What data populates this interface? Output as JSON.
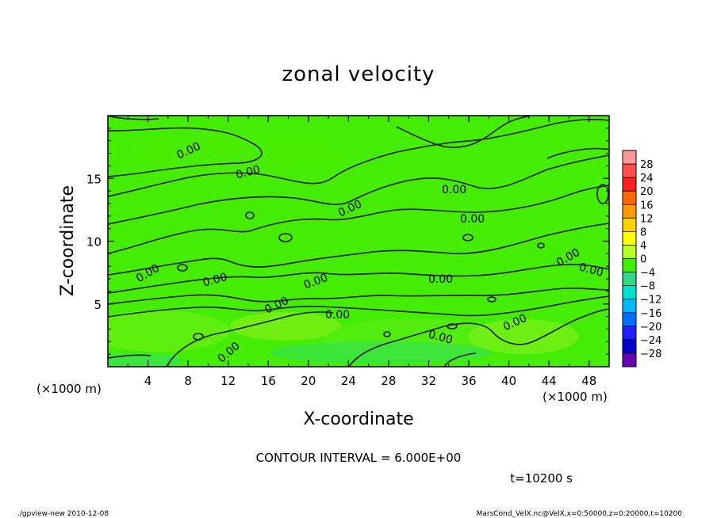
{
  "chart_data": {
    "type": "heatmap",
    "title": "zonal velocity",
    "xlabel": "X-coordinate",
    "ylabel": "Z-coordinate",
    "x_units": "(×1000 m)",
    "z_units": "(×1000 m)",
    "xlim": [
      0,
      50
    ],
    "ylim": [
      0,
      20
    ],
    "x_ticks": [
      "4",
      "8",
      "12",
      "16",
      "20",
      "24",
      "28",
      "32",
      "36",
      "40",
      "44",
      "48"
    ],
    "y_ticks": [
      "5",
      "10",
      "15"
    ],
    "colorbar": {
      "levels": [
        "28",
        "24",
        "20",
        "16",
        "12",
        "8",
        "4",
        "0",
        "−4",
        "−8",
        "−12",
        "−16",
        "−20",
        "−24",
        "−28"
      ],
      "colors": [
        "#ff9999",
        "#ff5050",
        "#ff2020",
        "#ff6a00",
        "#ff9a00",
        "#ffd200",
        "#ffff00",
        "#b8ff28",
        "#40f000",
        "#30d888",
        "#00e0d0",
        "#00b8ff",
        "#0070ff",
        "#1e1eff",
        "#0000c8",
        "#6a00b0"
      ]
    },
    "contour_labels": [
      "0.00",
      "0.00",
      "0.00",
      "0.00",
      "0.00",
      "0.00",
      "0.00",
      "0.00",
      "0.00",
      "0.00",
      "0.00",
      "0.00",
      "0.00",
      "0.00",
      "0.00",
      "0.00"
    ],
    "grid": false,
    "legend_placement": "right"
  },
  "contour_interval_text": "CONTOUR INTERVAL = 6.000E+00",
  "time_text": "t=10200 s",
  "footer_left": "./gpview-new   2010-12-08",
  "footer_right": "MarsCond_VelX.nc@VelX,x=0:50000,z=0:20000,t=10200"
}
